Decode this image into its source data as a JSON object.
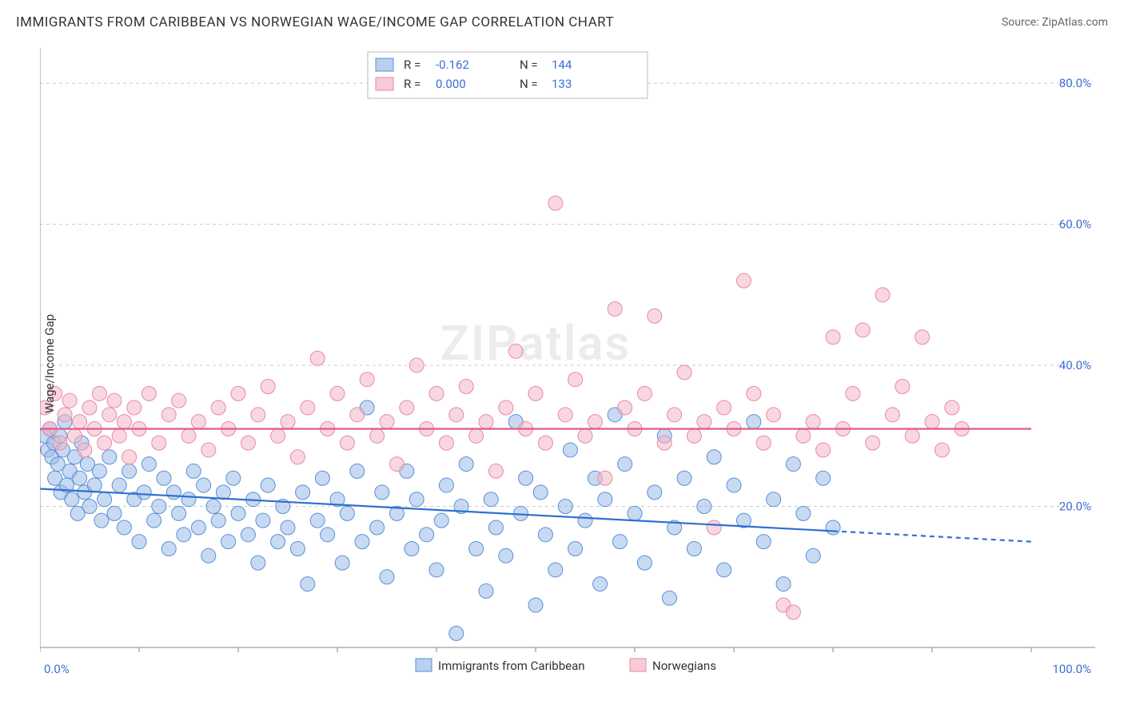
{
  "header": {
    "title": "IMMIGRANTS FROM CARIBBEAN VS NORWEGIAN WAGE/INCOME GAP CORRELATION CHART",
    "source_label": "Source: ",
    "source_name": "ZipAtlas.com"
  },
  "ylabel": "Wage/Income Gap",
  "watermark": "ZIPatlas",
  "chart": {
    "type": "scatter",
    "background_color": "#ffffff",
    "grid_color": "#cccccc",
    "x": {
      "min": 0,
      "max": 100,
      "ticks": [
        0,
        100
      ],
      "tick_labels": [
        "0.0%",
        "100.0%"
      ]
    },
    "y": {
      "min": 0,
      "max": 85,
      "ticks": [
        20,
        40,
        60,
        80
      ],
      "tick_labels": [
        "20.0%",
        "40.0%",
        "60.0%",
        "80.0%"
      ]
    },
    "series": [
      {
        "name": "Immigrants from Caribbean",
        "marker_fill": "#9bbce8",
        "marker_stroke": "#5a8fd6",
        "marker_opacity": 0.55,
        "marker_radius": 9,
        "line_color": "#2f6fd0",
        "line_width": 2.2,
        "trend": {
          "y_at_x0": 22.5,
          "y_at_x100": 15.0,
          "solid_until_x": 80
        },
        "R": "-0.162",
        "N": "144",
        "points": [
          [
            0.5,
            30
          ],
          [
            0.8,
            28
          ],
          [
            1.0,
            31
          ],
          [
            1.2,
            27
          ],
          [
            1.4,
            29
          ],
          [
            1.5,
            24
          ],
          [
            1.8,
            26
          ],
          [
            2.0,
            30
          ],
          [
            2.1,
            22
          ],
          [
            2.3,
            28
          ],
          [
            2.5,
            32
          ],
          [
            2.7,
            23
          ],
          [
            3.0,
            25
          ],
          [
            3.2,
            21
          ],
          [
            3.5,
            27
          ],
          [
            3.8,
            19
          ],
          [
            4.0,
            24
          ],
          [
            4.2,
            29
          ],
          [
            4.5,
            22
          ],
          [
            4.8,
            26
          ],
          [
            5.0,
            20
          ],
          [
            5.5,
            23
          ],
          [
            6.0,
            25
          ],
          [
            6.2,
            18
          ],
          [
            6.5,
            21
          ],
          [
            7.0,
            27
          ],
          [
            7.5,
            19
          ],
          [
            8.0,
            23
          ],
          [
            8.5,
            17
          ],
          [
            9.0,
            25
          ],
          [
            9.5,
            21
          ],
          [
            10.0,
            15
          ],
          [
            10.5,
            22
          ],
          [
            11.0,
            26
          ],
          [
            11.5,
            18
          ],
          [
            12.0,
            20
          ],
          [
            12.5,
            24
          ],
          [
            13.0,
            14
          ],
          [
            13.5,
            22
          ],
          [
            14.0,
            19
          ],
          [
            14.5,
            16
          ],
          [
            15.0,
            21
          ],
          [
            15.5,
            25
          ],
          [
            16.0,
            17
          ],
          [
            16.5,
            23
          ],
          [
            17.0,
            13
          ],
          [
            17.5,
            20
          ],
          [
            18.0,
            18
          ],
          [
            18.5,
            22
          ],
          [
            19.0,
            15
          ],
          [
            19.5,
            24
          ],
          [
            20.0,
            19
          ],
          [
            21.0,
            16
          ],
          [
            21.5,
            21
          ],
          [
            22.0,
            12
          ],
          [
            22.5,
            18
          ],
          [
            23.0,
            23
          ],
          [
            24.0,
            15
          ],
          [
            24.5,
            20
          ],
          [
            25.0,
            17
          ],
          [
            26.0,
            14
          ],
          [
            26.5,
            22
          ],
          [
            27.0,
            9
          ],
          [
            28.0,
            18
          ],
          [
            28.5,
            24
          ],
          [
            29.0,
            16
          ],
          [
            30.0,
            21
          ],
          [
            30.5,
            12
          ],
          [
            31.0,
            19
          ],
          [
            32.0,
            25
          ],
          [
            32.5,
            15
          ],
          [
            33.0,
            34
          ],
          [
            34.0,
            17
          ],
          [
            34.5,
            22
          ],
          [
            35.0,
            10
          ],
          [
            36.0,
            19
          ],
          [
            37.0,
            25
          ],
          [
            37.5,
            14
          ],
          [
            38.0,
            21
          ],
          [
            39.0,
            16
          ],
          [
            40.0,
            11
          ],
          [
            40.5,
            18
          ],
          [
            41.0,
            23
          ],
          [
            42.0,
            2
          ],
          [
            42.5,
            20
          ],
          [
            43.0,
            26
          ],
          [
            44.0,
            14
          ],
          [
            45.0,
            8
          ],
          [
            45.5,
            21
          ],
          [
            46.0,
            17
          ],
          [
            47.0,
            13
          ],
          [
            48.0,
            32
          ],
          [
            48.5,
            19
          ],
          [
            49.0,
            24
          ],
          [
            50.0,
            6
          ],
          [
            50.5,
            22
          ],
          [
            51.0,
            16
          ],
          [
            52.0,
            11
          ],
          [
            53.0,
            20
          ],
          [
            53.5,
            28
          ],
          [
            54.0,
            14
          ],
          [
            55.0,
            18
          ],
          [
            56.0,
            24
          ],
          [
            56.5,
            9
          ],
          [
            57.0,
            21
          ],
          [
            58.0,
            33
          ],
          [
            58.5,
            15
          ],
          [
            59.0,
            26
          ],
          [
            60.0,
            19
          ],
          [
            61.0,
            12
          ],
          [
            62.0,
            22
          ],
          [
            63.0,
            30
          ],
          [
            63.5,
            7
          ],
          [
            64.0,
            17
          ],
          [
            65.0,
            24
          ],
          [
            66.0,
            14
          ],
          [
            67.0,
            20
          ],
          [
            68.0,
            27
          ],
          [
            69.0,
            11
          ],
          [
            70.0,
            23
          ],
          [
            71.0,
            18
          ],
          [
            72.0,
            32
          ],
          [
            73.0,
            15
          ],
          [
            74.0,
            21
          ],
          [
            75.0,
            9
          ],
          [
            76.0,
            26
          ],
          [
            77.0,
            19
          ],
          [
            78.0,
            13
          ],
          [
            79.0,
            24
          ],
          [
            80.0,
            17
          ]
        ]
      },
      {
        "name": "Norwegians",
        "marker_fill": "#f4b6c6",
        "marker_stroke": "#e78aa3",
        "marker_opacity": 0.55,
        "marker_radius": 9,
        "line_color": "#e05a87",
        "line_width": 2.2,
        "trend": {
          "y_at_x0": 31.0,
          "y_at_x100": 31.0,
          "solid_until_x": 100
        },
        "R": "0.000",
        "N": "133",
        "points": [
          [
            0.5,
            34
          ],
          [
            1.0,
            31
          ],
          [
            1.5,
            36
          ],
          [
            2.0,
            29
          ],
          [
            2.5,
            33
          ],
          [
            3.0,
            35
          ],
          [
            3.5,
            30
          ],
          [
            4.0,
            32
          ],
          [
            4.5,
            28
          ],
          [
            5.0,
            34
          ],
          [
            5.5,
            31
          ],
          [
            6.0,
            36
          ],
          [
            6.5,
            29
          ],
          [
            7.0,
            33
          ],
          [
            7.5,
            35
          ],
          [
            8.0,
            30
          ],
          [
            8.5,
            32
          ],
          [
            9.0,
            27
          ],
          [
            9.5,
            34
          ],
          [
            10.0,
            31
          ],
          [
            11.0,
            36
          ],
          [
            12.0,
            29
          ],
          [
            13.0,
            33
          ],
          [
            14.0,
            35
          ],
          [
            15.0,
            30
          ],
          [
            16.0,
            32
          ],
          [
            17.0,
            28
          ],
          [
            18.0,
            34
          ],
          [
            19.0,
            31
          ],
          [
            20.0,
            36
          ],
          [
            21.0,
            29
          ],
          [
            22.0,
            33
          ],
          [
            23.0,
            37
          ],
          [
            24.0,
            30
          ],
          [
            25.0,
            32
          ],
          [
            26.0,
            27
          ],
          [
            27.0,
            34
          ],
          [
            28.0,
            41
          ],
          [
            29.0,
            31
          ],
          [
            30.0,
            36
          ],
          [
            31.0,
            29
          ],
          [
            32.0,
            33
          ],
          [
            33.0,
            38
          ],
          [
            34.0,
            30
          ],
          [
            35.0,
            32
          ],
          [
            36.0,
            26
          ],
          [
            37.0,
            34
          ],
          [
            38.0,
            40
          ],
          [
            39.0,
            31
          ],
          [
            40.0,
            36
          ],
          [
            41.0,
            29
          ],
          [
            42.0,
            33
          ],
          [
            43.0,
            37
          ],
          [
            44.0,
            30
          ],
          [
            45.0,
            32
          ],
          [
            46.0,
            25
          ],
          [
            47.0,
            34
          ],
          [
            48.0,
            42
          ],
          [
            49.0,
            31
          ],
          [
            50.0,
            36
          ],
          [
            51.0,
            29
          ],
          [
            52.0,
            63
          ],
          [
            53.0,
            33
          ],
          [
            54.0,
            38
          ],
          [
            55.0,
            30
          ],
          [
            56.0,
            32
          ],
          [
            57.0,
            24
          ],
          [
            58.0,
            48
          ],
          [
            59.0,
            34
          ],
          [
            60.0,
            31
          ],
          [
            61.0,
            36
          ],
          [
            62.0,
            47
          ],
          [
            63.0,
            29
          ],
          [
            64.0,
            33
          ],
          [
            65.0,
            39
          ],
          [
            66.0,
            30
          ],
          [
            67.0,
            32
          ],
          [
            68.0,
            17
          ],
          [
            69.0,
            34
          ],
          [
            70.0,
            31
          ],
          [
            71.0,
            52
          ],
          [
            72.0,
            36
          ],
          [
            73.0,
            29
          ],
          [
            74.0,
            33
          ],
          [
            75.0,
            6
          ],
          [
            76.0,
            5
          ],
          [
            77.0,
            30
          ],
          [
            78.0,
            32
          ],
          [
            79.0,
            28
          ],
          [
            80.0,
            44
          ],
          [
            81.0,
            31
          ],
          [
            82.0,
            36
          ],
          [
            83.0,
            45
          ],
          [
            84.0,
            29
          ],
          [
            85.0,
            50
          ],
          [
            86.0,
            33
          ],
          [
            87.0,
            37
          ],
          [
            88.0,
            30
          ],
          [
            89.0,
            44
          ],
          [
            90.0,
            32
          ],
          [
            91.0,
            28
          ],
          [
            92.0,
            34
          ],
          [
            93.0,
            31
          ]
        ]
      }
    ],
    "stats_box": {
      "rows": [
        {
          "series_idx": 0,
          "R_label": "R =",
          "N_label": "N ="
        },
        {
          "series_idx": 1,
          "R_label": "R =",
          "N_label": "N ="
        }
      ]
    }
  }
}
